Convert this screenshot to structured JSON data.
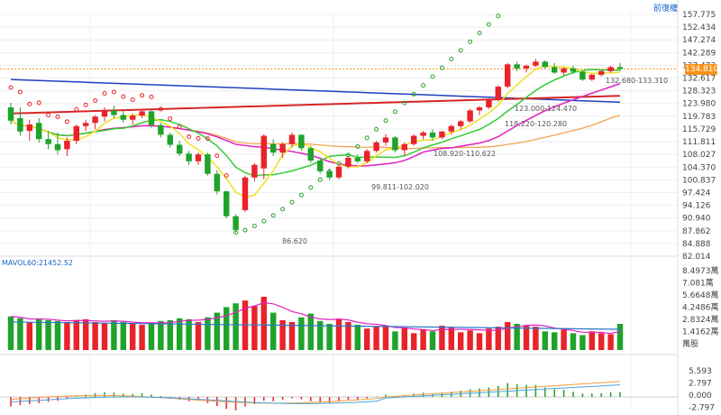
{
  "header": {
    "right_label": "前復權"
  },
  "price_axis": {
    "ticks": [
      "157.775",
      "152.434",
      "147.274",
      "142.289",
      "137.473",
      "132.617",
      "128.323",
      "123.980",
      "119.783",
      "115.729",
      "111.811",
      "108.027",
      "104.370",
      "100.837",
      "97.424",
      "94.126",
      "90.940",
      "87.862",
      "84.888",
      "82.014"
    ]
  },
  "current_price": "134.810",
  "volume": {
    "label": "MAVOL60:21452.52",
    "ticks": [
      "8.4973萬",
      "7.081萬",
      "5.6648萬",
      "4.2486萬",
      "2.8324萬",
      "1.4162萬",
      "萬股"
    ]
  },
  "macd": {
    "ticks": [
      "5.593",
      "2.797",
      "0.000",
      "-2.797"
    ]
  },
  "annotations": {
    "range_1": "132.680-133.310",
    "range_2": "123.000-124.470",
    "range_3": "118.220-120.280",
    "range_4": "108.920-110.622",
    "range_5": "99.811-102.020",
    "low": "86.620"
  },
  "colors": {
    "up": "#e8242a",
    "down": "#1fa32a",
    "ma_red": "#d62728",
    "ma_blue": "#1f3fbf",
    "ma_orange": "#f39c3c",
    "ma_magenta": "#e020c0",
    "ma_green": "#33cc33",
    "ma_yellow": "#f0e020",
    "sar": "#2ca02c"
  },
  "chart_data": [
    {
      "type": "candlestick",
      "title": "",
      "ylim": [
        82.014,
        157.775
      ],
      "candles": [
        {
          "o": 121.5,
          "h": 123.0,
          "l": 116.0,
          "c": 117.2
        },
        {
          "o": 118.0,
          "h": 121.5,
          "l": 112.5,
          "c": 113.8
        },
        {
          "o": 114.0,
          "h": 117.5,
          "l": 111.0,
          "c": 116.0
        },
        {
          "o": 116.5,
          "h": 118.0,
          "l": 110.5,
          "c": 111.5
        },
        {
          "o": 111.5,
          "h": 114.0,
          "l": 108.5,
          "c": 110.0
        },
        {
          "o": 110.0,
          "h": 113.5,
          "l": 107.0,
          "c": 108.2
        },
        {
          "o": 108.5,
          "h": 112.0,
          "l": 106.5,
          "c": 111.0
        },
        {
          "o": 111.0,
          "h": 116.0,
          "l": 110.0,
          "c": 115.5
        },
        {
          "o": 115.5,
          "h": 117.5,
          "l": 114.0,
          "c": 116.5
        },
        {
          "o": 116.5,
          "h": 119.0,
          "l": 114.5,
          "c": 118.5
        },
        {
          "o": 118.5,
          "h": 121.5,
          "l": 117.0,
          "c": 120.5
        },
        {
          "o": 120.5,
          "h": 122.0,
          "l": 118.0,
          "c": 119.0
        },
        {
          "o": 119.0,
          "h": 120.5,
          "l": 116.5,
          "c": 117.5
        },
        {
          "o": 117.5,
          "h": 119.5,
          "l": 116.0,
          "c": 118.8
        },
        {
          "o": 118.8,
          "h": 121.0,
          "l": 118.0,
          "c": 120.2
        },
        {
          "o": 120.2,
          "h": 120.5,
          "l": 115.0,
          "c": 115.8
        },
        {
          "o": 115.8,
          "h": 116.5,
          "l": 112.0,
          "c": 112.8
        },
        {
          "o": 112.8,
          "h": 113.5,
          "l": 109.0,
          "c": 109.8
        },
        {
          "o": 109.8,
          "h": 111.0,
          "l": 106.5,
          "c": 107.2
        },
        {
          "o": 107.2,
          "h": 108.0,
          "l": 104.0,
          "c": 105.0
        },
        {
          "o": 105.0,
          "h": 107.5,
          "l": 104.0,
          "c": 107.0
        },
        {
          "o": 107.0,
          "h": 107.5,
          "l": 101.0,
          "c": 101.5
        },
        {
          "o": 101.5,
          "h": 102.5,
          "l": 96.0,
          "c": 96.8
        },
        {
          "o": 96.8,
          "h": 97.0,
          "l": 90.0,
          "c": 90.5
        },
        {
          "o": 90.5,
          "h": 91.0,
          "l": 86.62,
          "c": 87.2
        },
        {
          "o": 92.0,
          "h": 101.0,
          "l": 91.5,
          "c": 100.5
        },
        {
          "o": 100.5,
          "h": 104.5,
          "l": 99.5,
          "c": 104.0
        },
        {
          "o": 103.0,
          "h": 113.0,
          "l": 100.0,
          "c": 112.5
        },
        {
          "o": 110.0,
          "h": 111.5,
          "l": 106.5,
          "c": 107.5
        },
        {
          "o": 107.5,
          "h": 110.5,
          "l": 106.0,
          "c": 110.0
        },
        {
          "o": 110.0,
          "h": 113.5,
          "l": 109.0,
          "c": 112.8
        },
        {
          "o": 112.8,
          "h": 113.0,
          "l": 108.0,
          "c": 108.8
        },
        {
          "o": 108.8,
          "h": 109.5,
          "l": 104.5,
          "c": 105.2
        },
        {
          "o": 105.2,
          "h": 106.0,
          "l": 101.5,
          "c": 102.2
        },
        {
          "o": 102.2,
          "h": 103.0,
          "l": 99.8,
          "c": 100.5
        },
        {
          "o": 100.5,
          "h": 104.0,
          "l": 100.0,
          "c": 103.5
        },
        {
          "o": 103.5,
          "h": 106.5,
          "l": 103.0,
          "c": 106.0
        },
        {
          "o": 106.0,
          "h": 107.0,
          "l": 104.5,
          "c": 105.0
        },
        {
          "o": 105.0,
          "h": 108.5,
          "l": 104.5,
          "c": 108.0
        },
        {
          "o": 108.0,
          "h": 111.0,
          "l": 107.5,
          "c": 110.5
        },
        {
          "o": 110.5,
          "h": 113.0,
          "l": 109.5,
          "c": 112.0
        },
        {
          "o": 112.0,
          "h": 112.5,
          "l": 107.5,
          "c": 108.2
        },
        {
          "o": 108.2,
          "h": 110.5,
          "l": 106.5,
          "c": 110.0
        },
        {
          "o": 110.0,
          "h": 113.0,
          "l": 109.5,
          "c": 112.5
        },
        {
          "o": 112.5,
          "h": 114.0,
          "l": 111.5,
          "c": 113.5
        },
        {
          "o": 113.5,
          "h": 114.5,
          "l": 111.0,
          "c": 112.0
        },
        {
          "o": 112.0,
          "h": 114.0,
          "l": 111.5,
          "c": 113.8
        },
        {
          "o": 113.8,
          "h": 116.0,
          "l": 113.0,
          "c": 115.5
        },
        {
          "o": 115.5,
          "h": 117.5,
          "l": 114.5,
          "c": 117.0
        },
        {
          "o": 117.0,
          "h": 121.0,
          "l": 116.5,
          "c": 120.5
        },
        {
          "o": 120.5,
          "h": 122.0,
          "l": 119.0,
          "c": 121.5
        },
        {
          "o": 121.5,
          "h": 124.5,
          "l": 121.0,
          "c": 124.0
        },
        {
          "o": 124.0,
          "h": 129.0,
          "l": 123.5,
          "c": 128.5
        },
        {
          "o": 128.5,
          "h": 137.0,
          "l": 128.0,
          "c": 136.5
        },
        {
          "o": 136.5,
          "h": 137.5,
          "l": 134.0,
          "c": 135.0
        },
        {
          "o": 135.0,
          "h": 136.5,
          "l": 133.5,
          "c": 136.0
        },
        {
          "o": 136.0,
          "h": 138.5,
          "l": 135.5,
          "c": 137.5
        },
        {
          "o": 137.5,
          "h": 138.0,
          "l": 135.0,
          "c": 135.5
        },
        {
          "o": 135.5,
          "h": 137.0,
          "l": 133.0,
          "c": 133.5
        },
        {
          "o": 133.5,
          "h": 135.5,
          "l": 132.5,
          "c": 135.0
        },
        {
          "o": 135.0,
          "h": 136.0,
          "l": 133.0,
          "c": 133.8
        },
        {
          "o": 133.8,
          "h": 134.0,
          "l": 130.5,
          "c": 131.0
        },
        {
          "o": 131.0,
          "h": 133.0,
          "l": 130.5,
          "c": 132.7
        },
        {
          "o": 132.7,
          "h": 134.5,
          "l": 132.0,
          "c": 134.0
        },
        {
          "o": 134.0,
          "h": 136.0,
          "l": 133.5,
          "c": 135.5
        },
        {
          "o": 135.5,
          "h": 137.0,
          "l": 134.0,
          "c": 134.8
        }
      ],
      "volume": [
        3.6,
        3.4,
        3.0,
        3.3,
        3.2,
        3.1,
        3.0,
        3.2,
        3.3,
        3.0,
        2.9,
        3.2,
        3.0,
        2.8,
        2.7,
        2.9,
        3.1,
        3.2,
        3.4,
        3.3,
        3.0,
        3.5,
        4.0,
        4.6,
        5.0,
        5.3,
        4.7,
        5.7,
        4.0,
        3.2,
        3.0,
        3.5,
        3.9,
        3.1,
        2.8,
        3.3,
        3.0,
        2.7,
        2.3,
        2.5,
        2.6,
        2.0,
        2.4,
        1.8,
        2.2,
        2.0,
        2.6,
        2.4,
        1.9,
        2.1,
        1.8,
        2.3,
        2.5,
        3.0,
        2.8,
        2.6,
        2.5,
        2.0,
        1.9,
        2.2,
        1.8,
        1.6,
        2.0,
        1.8,
        1.7,
        2.8
      ],
      "macd_hist": [
        -2.0,
        -1.7,
        -1.5,
        -1.3,
        -1.0,
        -0.8,
        -0.4,
        0.2,
        0.5,
        0.8,
        1.0,
        0.9,
        0.7,
        0.6,
        0.8,
        0.5,
        0.2,
        -0.3,
        -0.6,
        -0.9,
        -0.8,
        -1.3,
        -1.9,
        -2.5,
        -2.8,
        -2.0,
        -1.5,
        -0.8,
        -0.9,
        -0.6,
        -0.3,
        -0.5,
        -0.9,
        -1.2,
        -1.4,
        -1.0,
        -0.6,
        -0.7,
        -0.3,
        0.1,
        0.5,
        0.2,
        0.4,
        0.7,
        0.9,
        0.7,
        0.9,
        1.1,
        1.3,
        1.6,
        1.8,
        2.0,
        2.3,
        2.9,
        2.7,
        2.5,
        2.5,
        2.0,
        1.6,
        1.5,
        1.1,
        0.7,
        0.7,
        0.8,
        1.0,
        1.0
      ]
    }
  ]
}
